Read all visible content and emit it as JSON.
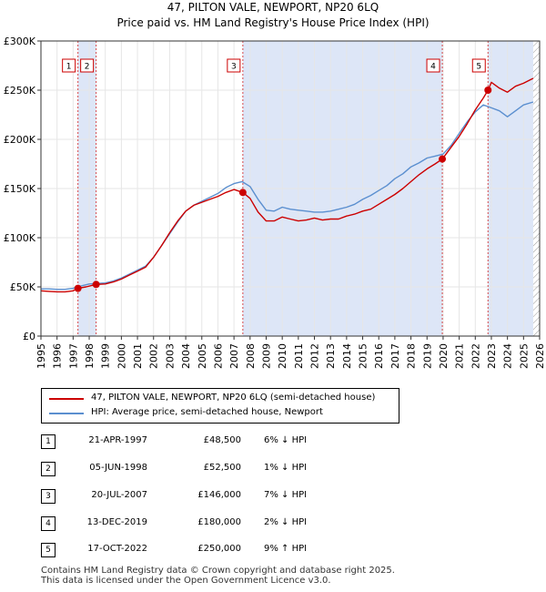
{
  "header": {
    "title": "47, PILTON VALE, NEWPORT, NP20 6LQ",
    "subtitle": "Price paid vs. HM Land Registry's House Price Index (HPI)"
  },
  "colors": {
    "property_line": "#cc0000",
    "hpi_line": "#5b8fcf",
    "shade": "#dde6f7",
    "marker_line": "#cc0000",
    "hatch": "#999999"
  },
  "chart_data": {
    "type": "line",
    "title": "47, PILTON VALE, NEWPORT, NP20 6LQ",
    "subtitle": "Price paid vs. HM Land Registry's House Price Index (HPI)",
    "xlabel": "",
    "ylabel": "",
    "xlim": [
      1995,
      2026
    ],
    "ylim": [
      0,
      300000
    ],
    "x_ticks": [
      1995,
      1996,
      1997,
      1998,
      1999,
      2000,
      2001,
      2002,
      2003,
      2004,
      2005,
      2006,
      2007,
      2008,
      2009,
      2010,
      2011,
      2012,
      2013,
      2014,
      2015,
      2016,
      2017,
      2018,
      2019,
      2020,
      2021,
      2022,
      2023,
      2024,
      2025,
      2026
    ],
    "y_ticks": [
      0,
      50000,
      100000,
      150000,
      200000,
      250000,
      300000
    ],
    "y_tick_labels": [
      "£0",
      "£50K",
      "£100K",
      "£150K",
      "£200K",
      "£250K",
      "£300K"
    ],
    "grid": true,
    "data_end": 2025.6,
    "series": [
      {
        "name": "47, PILTON VALE, NEWPORT, NP20 6LQ (semi-detached house)",
        "x": [
          1995.0,
          1995.5,
          1996.0,
          1996.5,
          1997.0,
          1997.3,
          1997.8,
          1998.43,
          1999.0,
          1999.5,
          2000.0,
          2000.5,
          2001.0,
          2001.5,
          2002.0,
          2002.5,
          2003.0,
          2003.5,
          2004.0,
          2004.5,
          2005.0,
          2005.5,
          2006.0,
          2006.5,
          2007.0,
          2007.55,
          2008.0,
          2008.5,
          2009.0,
          2009.5,
          2010.0,
          2010.5,
          2011.0,
          2011.5,
          2012.0,
          2012.5,
          2013.0,
          2013.5,
          2014.0,
          2014.5,
          2015.0,
          2015.5,
          2016.0,
          2016.5,
          2017.0,
          2017.5,
          2018.0,
          2018.5,
          2019.0,
          2019.5,
          2019.95,
          2020.5,
          2021.0,
          2021.5,
          2022.0,
          2022.5,
          2022.79,
          2023.0,
          2023.5,
          2024.0,
          2024.5,
          2025.0,
          2025.6
        ],
        "y": [
          46000,
          45500,
          45000,
          45000,
          46000,
          48500,
          50000,
          52500,
          53000,
          55000,
          58000,
          62000,
          66000,
          70000,
          80000,
          92000,
          105000,
          117000,
          127000,
          133000,
          136000,
          139000,
          142000,
          146000,
          149000,
          146000,
          140000,
          126000,
          117000,
          117000,
          121000,
          119000,
          117000,
          118000,
          120000,
          118000,
          119000,
          119000,
          122000,
          124000,
          127000,
          129000,
          134000,
          139000,
          144000,
          150000,
          157000,
          164000,
          170000,
          175000,
          180000,
          192000,
          203000,
          216000,
          230000,
          242000,
          250000,
          258000,
          252000,
          248000,
          254000,
          257000,
          262000
        ]
      },
      {
        "name": "HPI: Average price, semi-detached house, Newport",
        "x": [
          1995.0,
          1995.5,
          1996.0,
          1996.5,
          1997.0,
          1997.5,
          1998.0,
          1998.5,
          1999.0,
          1999.5,
          2000.0,
          2000.5,
          2001.0,
          2001.5,
          2002.0,
          2002.5,
          2003.0,
          2003.5,
          2004.0,
          2004.5,
          2005.0,
          2005.5,
          2006.0,
          2006.5,
          2007.0,
          2007.5,
          2008.0,
          2008.5,
          2009.0,
          2009.5,
          2010.0,
          2010.5,
          2011.0,
          2011.5,
          2012.0,
          2012.5,
          2013.0,
          2013.5,
          2014.0,
          2014.5,
          2015.0,
          2015.5,
          2016.0,
          2016.5,
          2017.0,
          2017.5,
          2018.0,
          2018.5,
          2019.0,
          2019.5,
          2020.0,
          2020.5,
          2021.0,
          2021.5,
          2022.0,
          2022.5,
          2023.0,
          2023.5,
          2024.0,
          2024.5,
          2025.0,
          2025.6
        ],
        "y": [
          48000,
          48000,
          47500,
          47500,
          48500,
          51000,
          53000,
          53500,
          54000,
          56000,
          59000,
          63000,
          67000,
          71000,
          80000,
          92000,
          104000,
          116000,
          127000,
          133000,
          137000,
          141000,
          145000,
          151000,
          155000,
          157000,
          152000,
          139000,
          128000,
          127000,
          131000,
          129000,
          128000,
          127000,
          126000,
          126000,
          127000,
          129000,
          131000,
          134000,
          139000,
          143000,
          148000,
          153000,
          160000,
          165000,
          172000,
          176000,
          181000,
          183000,
          185000,
          194000,
          206000,
          218000,
          228000,
          235000,
          232000,
          229000,
          223000,
          229000,
          235000,
          238000
        ]
      }
    ],
    "transactions": [
      {
        "num": "1",
        "x": 1997.3,
        "price": 48500
      },
      {
        "num": "2",
        "x": 1998.43,
        "price": 52500
      },
      {
        "num": "3",
        "x": 2007.55,
        "price": 146000
      },
      {
        "num": "4",
        "x": 2019.95,
        "price": 180000
      },
      {
        "num": "5",
        "x": 2022.79,
        "price": 250000
      }
    ],
    "shaded_ranges": [
      [
        1997.3,
        1998.43
      ],
      [
        2007.55,
        2019.95
      ],
      [
        2022.79,
        2025.6
      ]
    ]
  },
  "legend": {
    "property": "47, PILTON VALE, NEWPORT, NP20 6LQ (semi-detached house)",
    "hpi": "HPI: Average price, semi-detached house, Newport"
  },
  "table": [
    {
      "num": "1",
      "date": "21-APR-1997",
      "price": "£48,500",
      "hpi": "6% ↓ HPI"
    },
    {
      "num": "2",
      "date": "05-JUN-1998",
      "price": "£52,500",
      "hpi": "1% ↓ HPI"
    },
    {
      "num": "3",
      "date": "20-JUL-2007",
      "price": "£146,000",
      "hpi": "7% ↓ HPI"
    },
    {
      "num": "4",
      "date": "13-DEC-2019",
      "price": "£180,000",
      "hpi": "2% ↓ HPI"
    },
    {
      "num": "5",
      "date": "17-OCT-2022",
      "price": "£250,000",
      "hpi": "9% ↑ HPI"
    }
  ],
  "footer": {
    "line1": "Contains HM Land Registry data © Crown copyright and database right 2025.",
    "line2": "This data is licensed under the Open Government Licence v3.0."
  }
}
